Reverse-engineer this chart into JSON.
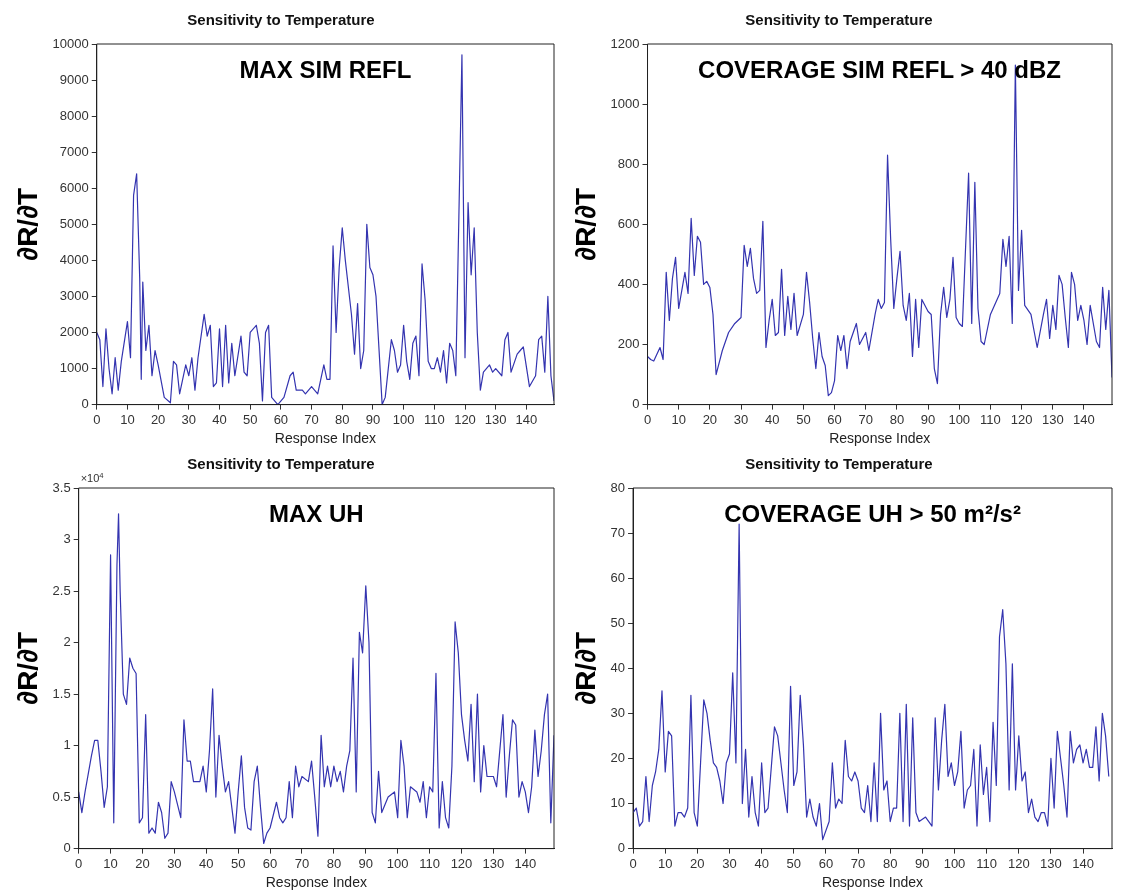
{
  "chart_data": [
    {
      "type": "line",
      "title": "Sensitivity to Temperature",
      "xlabel": "Response Index",
      "ylabel": "∂R/∂T",
      "annotations": [
        "MAX SIM REFL"
      ],
      "xlim": [
        0,
        149
      ],
      "xticks": [
        0,
        10,
        20,
        30,
        40,
        50,
        60,
        70,
        80,
        90,
        100,
        110,
        120,
        130,
        140
      ],
      "ylim": [
        0,
        10000
      ],
      "yticks": [
        0,
        1000,
        2000,
        3000,
        4000,
        5000,
        6000,
        7000,
        8000,
        9000,
        10000
      ],
      "series": [
        {
          "color": "#3434b0",
          "x": [
            0,
            1,
            2,
            3,
            4,
            5,
            6,
            7,
            8,
            10,
            11,
            12,
            13,
            14,
            14.5,
            15,
            16,
            17,
            18,
            19,
            20,
            22,
            24,
            25,
            26,
            27,
            28,
            29,
            30,
            31,
            32,
            33,
            35,
            36,
            37,
            38,
            39,
            40,
            41,
            42,
            43,
            44,
            45,
            47,
            48,
            49,
            50,
            52,
            53,
            54,
            55,
            56,
            57,
            59,
            61,
            63,
            64,
            65,
            67,
            68,
            70,
            72,
            74,
            75,
            76,
            77,
            78,
            79,
            80,
            81,
            83,
            84,
            85,
            86,
            87,
            88,
            89,
            90,
            91,
            92,
            93,
            94,
            96,
            97,
            98,
            99,
            100,
            101,
            102,
            103,
            104,
            105,
            106,
            107,
            108,
            109,
            110,
            111,
            112,
            113,
            114,
            115,
            116,
            117,
            118,
            119,
            120,
            121,
            122,
            123,
            124,
            125,
            126,
            128,
            129,
            130,
            132,
            133,
            134,
            135,
            137,
            138,
            139,
            141,
            143,
            144,
            145,
            146,
            147,
            148,
            149
          ],
          "values": [
            2000,
            1800,
            500,
            2100,
            1000,
            300,
            1300,
            400,
            1200,
            2300,
            1300,
            5800,
            6400,
            3500,
            700,
            3400,
            1500,
            2200,
            800,
            1500,
            1100,
            200,
            50,
            1200,
            1100,
            300,
            700,
            1100,
            800,
            1300,
            400,
            1300,
            2500,
            1900,
            2200,
            500,
            600,
            2100,
            500,
            2200,
            600,
            1700,
            800,
            1900,
            900,
            800,
            2000,
            2200,
            1700,
            100,
            2000,
            2200,
            200,
            0,
            200,
            800,
            900,
            400,
            400,
            300,
            500,
            300,
            1100,
            700,
            700,
            4400,
            2000,
            3800,
            4900,
            4000,
            2500,
            1400,
            2800,
            1000,
            1500,
            5000,
            3800,
            3600,
            3000,
            1500,
            0,
            200,
            1800,
            1500,
            900,
            1100,
            2200,
            1200,
            700,
            1700,
            1900,
            800,
            3900,
            2900,
            1200,
            1000,
            1000,
            1300,
            900,
            1500,
            600,
            1700,
            1500,
            800,
            5200,
            9700,
            1300,
            5600,
            3600,
            4900,
            2000,
            400,
            900,
            1100,
            900,
            1000,
            800,
            1800,
            2000,
            900,
            1400,
            1500,
            1600,
            500,
            800,
            1800,
            1900,
            900,
            3000,
            800,
            100
          ]
        }
      ]
    },
    {
      "type": "line",
      "title": "Sensitivity to Temperature",
      "xlabel": "Response Index",
      "ylabel": "∂R/∂T",
      "annotations": [
        "COVERAGE SIM REFL > 40 dBZ"
      ],
      "xlim": [
        0,
        149
      ],
      "xticks": [
        0,
        10,
        20,
        30,
        40,
        50,
        60,
        70,
        80,
        90,
        100,
        110,
        120,
        130,
        140
      ],
      "ylim": [
        0,
        1200
      ],
      "yticks": [
        0,
        200,
        400,
        600,
        800,
        1000,
        1200
      ],
      "series": [
        {
          "color": "#3434b0",
          "x": [
            0,
            1,
            2,
            4,
            5,
            6,
            7,
            8,
            9,
            10,
            12,
            13,
            14,
            15,
            16,
            17,
            18,
            19,
            20,
            21,
            22,
            24,
            26,
            28,
            30,
            31,
            32,
            33,
            34,
            35,
            36,
            37,
            38,
            39,
            40,
            41,
            42,
            43,
            44,
            45,
            46,
            47,
            48,
            50,
            51,
            52,
            53,
            54,
            55,
            56,
            57,
            58,
            59,
            60,
            61,
            62,
            63,
            64,
            65,
            67,
            68,
            70,
            71,
            73,
            74,
            75,
            76,
            77,
            78,
            79,
            80,
            81,
            82,
            83,
            84,
            85,
            86,
            87,
            88,
            90,
            91,
            92,
            93,
            94,
            95,
            96,
            97,
            98,
            99,
            100,
            101,
            103,
            104,
            105,
            106,
            107,
            108,
            110,
            113,
            114,
            115,
            116,
            117,
            118,
            119,
            120,
            121,
            123,
            125,
            127,
            128,
            129,
            130,
            131,
            132,
            133,
            134,
            135,
            136,
            137,
            138,
            139,
            140,
            141,
            142,
            144,
            145,
            146,
            147,
            148,
            149
          ],
          "values": [
            160,
            150,
            145,
            190,
            150,
            440,
            280,
            420,
            490,
            320,
            440,
            370,
            620,
            430,
            560,
            540,
            400,
            410,
            390,
            300,
            100,
            180,
            240,
            270,
            290,
            530,
            460,
            520,
            420,
            370,
            380,
            610,
            190,
            280,
            350,
            230,
            240,
            450,
            230,
            360,
            250,
            370,
            230,
            300,
            440,
            340,
            220,
            120,
            240,
            160,
            130,
            30,
            40,
            80,
            230,
            180,
            230,
            120,
            210,
            270,
            200,
            240,
            180,
            300,
            350,
            320,
            340,
            830,
            550,
            320,
            420,
            510,
            330,
            280,
            370,
            160,
            350,
            190,
            350,
            310,
            300,
            120,
            70,
            300,
            390,
            290,
            350,
            490,
            290,
            270,
            260,
            770,
            270,
            740,
            320,
            210,
            200,
            300,
            370,
            550,
            460,
            560,
            270,
            1130,
            380,
            580,
            330,
            300,
            190,
            300,
            350,
            220,
            330,
            250,
            430,
            400,
            290,
            190,
            440,
            400,
            280,
            330,
            280,
            200,
            330,
            210,
            190,
            390,
            250,
            380,
            90
          ]
        }
      ]
    },
    {
      "type": "line",
      "title": "Sensitivity to Temperature",
      "xlabel": "Response Index",
      "ylabel": "∂R/∂T",
      "annotations": [
        "MAX UH",
        "×10$^{4}$"
      ],
      "xlim": [
        0,
        149
      ],
      "xticks": [
        0,
        10,
        20,
        30,
        40,
        50,
        60,
        70,
        80,
        90,
        100,
        110,
        120,
        130,
        140
      ],
      "ylim": [
        0,
        3.5
      ],
      "yticks": [
        0,
        0.5,
        1,
        1.5,
        2,
        2.5,
        3,
        3.5
      ],
      "series": [
        {
          "color": "#3434b0",
          "x": [
            0,
            1,
            2,
            4,
            5,
            6,
            7,
            8,
            9,
            10,
            11,
            12,
            12.5,
            13,
            14,
            15,
            16,
            17,
            18,
            19,
            20,
            21,
            22,
            23,
            24,
            25,
            26,
            27,
            28,
            29,
            30,
            32,
            33,
            34,
            35,
            36,
            38,
            39,
            40,
            41,
            42,
            43,
            44,
            45,
            46,
            47,
            48,
            49,
            50,
            51,
            52,
            53,
            54,
            55,
            56,
            57,
            58,
            59,
            60,
            62,
            63,
            64,
            65,
            66,
            67,
            68,
            69,
            70,
            72,
            73,
            74,
            75,
            76,
            77,
            78,
            79,
            80,
            81,
            82,
            83,
            84,
            85,
            86,
            87,
            88,
            89,
            90,
            91,
            92,
            93,
            94,
            95,
            97,
            99,
            100,
            101,
            102,
            103,
            104,
            106,
            107,
            108,
            109,
            110,
            111,
            112,
            113,
            114,
            115,
            116,
            117,
            118,
            119,
            120,
            121,
            122,
            123,
            124,
            125,
            126,
            127,
            128,
            130,
            131,
            133,
            134,
            135,
            136,
            137,
            138,
            139,
            140,
            141,
            142,
            143,
            144,
            145,
            146,
            147,
            148,
            149
          ],
          "values": [
            0.55,
            0.35,
            0.55,
            0.9,
            1.05,
            1.05,
            0.75,
            0.4,
            0.6,
            2.85,
            0.25,
            2.75,
            3.25,
            2.5,
            1.5,
            1.4,
            1.85,
            1.75,
            1.7,
            0.25,
            0.3,
            1.3,
            0.15,
            0.2,
            0.15,
            0.45,
            0.35,
            0.1,
            0.15,
            0.65,
            0.55,
            0.3,
            1.25,
            0.85,
            0.85,
            0.65,
            0.65,
            0.8,
            0.55,
            0.95,
            1.55,
            0.5,
            1.1,
            0.8,
            0.55,
            0.65,
            0.4,
            0.15,
            0.55,
            0.9,
            0.4,
            0.2,
            0.18,
            0.65,
            0.8,
            0.4,
            0.05,
            0.15,
            0.2,
            0.45,
            0.3,
            0.25,
            0.3,
            0.65,
            0.3,
            0.8,
            0.6,
            0.7,
            0.65,
            0.85,
            0.5,
            0.12,
            1.1,
            0.6,
            0.8,
            0.6,
            0.8,
            0.65,
            0.75,
            0.55,
            0.8,
            0.95,
            1.85,
            0.55,
            2.1,
            1.9,
            2.55,
            2.0,
            0.35,
            0.25,
            0.75,
            0.35,
            0.5,
            0.55,
            0.3,
            1.05,
            0.8,
            0.3,
            0.6,
            0.55,
            0.45,
            0.65,
            0.3,
            0.6,
            0.55,
            1.7,
            0.2,
            0.65,
            0.3,
            0.2,
            0.8,
            2.2,
            1.9,
            1.3,
            1.05,
            0.85,
            1.4,
            0.65,
            1.5,
            0.55,
            1.0,
            0.7,
            0.7,
            0.6,
            1.3,
            0.5,
            0.9,
            1.25,
            1.2,
            0.5,
            0.65,
            0.55,
            0.35,
            0.6,
            1.15,
            0.7,
            0.95,
            1.3,
            1.5,
            0.25,
            1.1
          ]
        }
      ]
    },
    {
      "type": "line",
      "title": "Sensitivity to Temperature",
      "xlabel": "Response Index",
      "ylabel": "∂R/∂T",
      "annotations": [
        "COVERAGE UH > 50 m²/s²"
      ],
      "xlim": [
        0,
        149
      ],
      "xticks": [
        0,
        10,
        20,
        30,
        40,
        50,
        60,
        70,
        80,
        90,
        100,
        110,
        120,
        130,
        140
      ],
      "ylim": [
        0,
        80
      ],
      "yticks": [
        0,
        10,
        20,
        30,
        40,
        50,
        60,
        70,
        80
      ],
      "series": [
        {
          "color": "#3434b0",
          "x": [
            0,
            1,
            2,
            3,
            4,
            5,
            6,
            7,
            8,
            9,
            10,
            11,
            12,
            13,
            14,
            15,
            16,
            17,
            18,
            19,
            20,
            22,
            23,
            24,
            25,
            26,
            27,
            28,
            29,
            30,
            31,
            32,
            33,
            34,
            35,
            36,
            37,
            38,
            39,
            40,
            41,
            42,
            44,
            45,
            46,
            47,
            48,
            49,
            50,
            51,
            52,
            53,
            54,
            55,
            56,
            57,
            58,
            59,
            61,
            62,
            63,
            64,
            65,
            66,
            67,
            68,
            69,
            70,
            71,
            72,
            73,
            74,
            75,
            76,
            77,
            78,
            79,
            80,
            81,
            82,
            83,
            84,
            85,
            86,
            87,
            88,
            89,
            91,
            92,
            93,
            94,
            95,
            96,
            97,
            98,
            99,
            100,
            101,
            102,
            103,
            104,
            105,
            106,
            107,
            108,
            109,
            110,
            111,
            112,
            113,
            114,
            115,
            116,
            117,
            118,
            119,
            120,
            121,
            122,
            123,
            124,
            125,
            126,
            127,
            128,
            129,
            130,
            131,
            132,
            133,
            134,
            135,
            136,
            137,
            138,
            139,
            140,
            141,
            142,
            143,
            144,
            145,
            146,
            147,
            148
          ],
          "values": [
            8,
            9,
            5,
            6,
            16,
            6,
            14,
            17,
            22,
            35,
            17,
            26,
            25,
            5,
            8,
            8,
            7,
            9,
            34,
            8,
            5,
            33,
            30,
            24,
            19,
            18,
            15,
            10,
            19,
            21,
            39,
            19,
            72,
            10,
            22,
            7,
            16,
            8,
            5,
            19,
            8,
            9,
            27,
            25,
            19,
            13,
            8,
            36,
            14,
            17,
            34,
            23,
            7,
            11,
            7,
            5,
            10,
            2,
            6,
            19,
            9,
            11,
            10,
            24,
            16,
            15,
            17,
            15,
            9,
            8,
            14,
            6,
            19,
            6,
            30,
            13,
            15,
            6,
            9,
            9,
            30,
            6,
            32,
            5,
            29,
            8,
            6,
            7,
            6,
            5,
            29,
            13,
            24,
            32,
            16,
            19,
            14,
            17,
            26,
            9,
            13,
            14,
            22,
            5,
            23,
            12,
            18,
            6,
            28,
            14,
            47,
            53,
            41,
            13,
            41,
            13,
            25,
            15,
            17,
            8,
            11,
            7,
            6,
            8,
            8,
            5,
            20,
            9,
            26,
            20,
            14,
            7,
            26,
            19,
            22,
            23,
            19,
            22,
            18,
            18,
            27,
            15,
            30,
            25,
            16
          ]
        }
      ]
    }
  ]
}
